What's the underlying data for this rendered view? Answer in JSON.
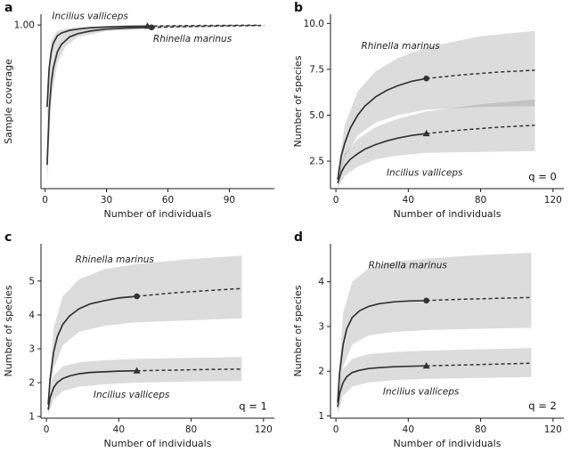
{
  "figure": {
    "background": "#ffffff",
    "line_color": "#333333",
    "band_color": "#8c8c8c",
    "axis_color": "#1a1a1a"
  },
  "chart_data": [
    {
      "id": "a",
      "letter": "a",
      "type": "line",
      "xlabel": "Number of individuals",
      "ylabel": "Sample coverage",
      "xlim": [
        -2,
        112
      ],
      "ylim": [
        0.24,
        1.05
      ],
      "xticks": [
        {
          "v": 0,
          "t": "0"
        },
        {
          "v": 30,
          "t": "30"
        },
        {
          "v": 60,
          "t": "60"
        },
        {
          "v": 90,
          "t": "90"
        }
      ],
      "yticks": [
        {
          "v": 1.0,
          "t": "1.00"
        }
      ],
      "q_label": null,
      "series": [
        {
          "name": "Incilius valliceps",
          "marker": "triangle",
          "solid": {
            "x": [
              1,
              2,
              3,
              4,
              6,
              8,
              12,
              16,
              22,
              30,
              40,
              50
            ],
            "y": [
              0.62,
              0.8,
              0.875,
              0.915,
              0.95,
              0.963,
              0.975,
              0.981,
              0.987,
              0.991,
              0.994,
              0.995
            ]
          },
          "dashed": {
            "x": [
              50,
              68,
              88,
              105
            ],
            "y": [
              0.995,
              0.997,
              0.9985,
              0.999
            ]
          },
          "band": {
            "x": [
              1,
              3,
              6,
              10,
              16,
              30,
              50,
              105
            ],
            "upper": [
              0.72,
              0.93,
              0.972,
              0.983,
              0.99,
              0.996,
              0.9985,
              1.0
            ],
            "lower": [
              0.52,
              0.82,
              0.928,
              0.955,
              0.972,
              0.986,
              0.9915,
              0.998
            ]
          },
          "label": {
            "text": "Incilius valliceps",
            "x": 22,
            "y": 1.028,
            "anchor": "middle"
          }
        },
        {
          "name": "Rhinella marinus",
          "marker": "circle",
          "solid": {
            "x": [
              1,
              2,
              3,
              4,
              6,
              8,
              12,
              16,
              22,
              30,
              40,
              52
            ],
            "y": [
              0.35,
              0.6,
              0.73,
              0.8,
              0.875,
              0.91,
              0.945,
              0.96,
              0.972,
              0.981,
              0.986,
              0.989
            ]
          },
          "dashed": {
            "x": [
              52,
              70,
              90,
              107
            ],
            "y": [
              0.989,
              0.993,
              0.996,
              0.998
            ]
          },
          "band": {
            "x": [
              1,
              3,
              6,
              10,
              16,
              30,
              52,
              107
            ],
            "upper": [
              0.45,
              0.81,
              0.925,
              0.955,
              0.974,
              0.989,
              0.996,
              1.0
            ],
            "lower": [
              0.26,
              0.65,
              0.825,
              0.9,
              0.944,
              0.972,
              0.982,
              0.996
            ]
          },
          "label": {
            "text": "Rhinella marinus",
            "x": 72,
            "y": 0.922,
            "anchor": "middle"
          }
        }
      ]
    },
    {
      "id": "b",
      "letter": "b",
      "type": "line",
      "xlabel": "Number of individuals",
      "ylabel": "Number of species",
      "xlim": [
        -3,
        126
      ],
      "ylim": [
        1.0,
        10.5
      ],
      "xticks": [
        {
          "v": 0,
          "t": "0"
        },
        {
          "v": 40,
          "t": "40"
        },
        {
          "v": 80,
          "t": "80"
        },
        {
          "v": 120,
          "t": "120"
        }
      ],
      "yticks": [
        {
          "v": 2.5,
          "t": "2.5"
        },
        {
          "v": 5.0,
          "t": "5.0"
        },
        {
          "v": 7.5,
          "t": "7.5"
        },
        {
          "v": 10.0,
          "t": "10.0"
        }
      ],
      "q_label": {
        "text": "q = 0",
        "x": 122,
        "y": 1.45
      },
      "series": [
        {
          "name": "Rhinella marinus",
          "marker": "circle",
          "solid": {
            "x": [
              1,
              3,
              5,
              8,
              12,
              16,
              22,
              28,
              34,
              42,
              50
            ],
            "y": [
              1.5,
              2.8,
              3.5,
              4.3,
              5.0,
              5.5,
              6.0,
              6.35,
              6.6,
              6.85,
              7.0
            ]
          },
          "dashed": {
            "x": [
              50,
              70,
              90,
              110
            ],
            "y": [
              7.0,
              7.2,
              7.35,
              7.45
            ]
          },
          "band": {
            "x": [
              1,
              5,
              12,
              22,
              34,
              50,
              80,
              110
            ],
            "upper": [
              1.9,
              4.5,
              6.3,
              7.4,
              8.1,
              8.7,
              9.3,
              9.6
            ],
            "lower": [
              1.2,
              2.7,
              3.9,
              4.6,
              5.0,
              5.3,
              5.45,
              5.5
            ]
          },
          "label": {
            "text": "Rhinella marinus",
            "x": 14,
            "y": 8.6,
            "anchor": "start"
          }
        },
        {
          "name": "Incilius valliceps",
          "marker": "triangle",
          "solid": {
            "x": [
              1,
              3,
              5,
              8,
              12,
              16,
              22,
              28,
              34,
              42,
              50
            ],
            "y": [
              1.3,
              1.9,
              2.25,
              2.6,
              2.9,
              3.15,
              3.4,
              3.6,
              3.75,
              3.9,
              4.0
            ]
          },
          "dashed": {
            "x": [
              50,
              70,
              90,
              110
            ],
            "y": [
              4.0,
              4.2,
              4.35,
              4.45
            ]
          },
          "band": {
            "x": [
              1,
              5,
              12,
              22,
              34,
              50,
              80,
              110
            ],
            "upper": [
              1.6,
              2.9,
              3.7,
              4.35,
              4.8,
              5.2,
              5.6,
              5.85
            ],
            "lower": [
              1.05,
              1.7,
              2.2,
              2.6,
              2.8,
              2.95,
              3.0,
              3.05
            ]
          },
          "label": {
            "text": "Incilius valliceps",
            "x": 28,
            "y": 1.7,
            "anchor": "start"
          }
        }
      ]
    },
    {
      "id": "c",
      "letter": "c",
      "type": "line",
      "xlabel": "Number of individuals",
      "ylabel": "Number of species",
      "xlim": [
        -3,
        126
      ],
      "ylim": [
        0.95,
        6.1
      ],
      "xticks": [
        {
          "v": 0,
          "t": "0"
        },
        {
          "v": 40,
          "t": "40"
        },
        {
          "v": 80,
          "t": "80"
        },
        {
          "v": 120,
          "t": "120"
        }
      ],
      "yticks": [
        {
          "v": 1,
          "t": "1"
        },
        {
          "v": 2,
          "t": "2"
        },
        {
          "v": 3,
          "t": "3"
        },
        {
          "v": 4,
          "t": "4"
        },
        {
          "v": 5,
          "t": "5"
        }
      ],
      "q_label": {
        "text": "q = 1",
        "x": 122,
        "y": 1.2
      },
      "series": [
        {
          "name": "Rhinella marinus",
          "marker": "circle",
          "solid": {
            "x": [
              1,
              2,
              4,
              6,
              9,
              13,
              18,
              24,
              32,
              40,
              50
            ],
            "y": [
              1.35,
              2.1,
              2.9,
              3.35,
              3.72,
              3.98,
              4.18,
              4.32,
              4.42,
              4.5,
              4.55
            ]
          },
          "dashed": {
            "x": [
              50,
              70,
              90,
              108
            ],
            "y": [
              4.55,
              4.65,
              4.72,
              4.78
            ]
          },
          "band": {
            "x": [
              1,
              4,
              9,
              18,
              32,
              50,
              80,
              108
            ],
            "upper": [
              1.6,
              3.6,
              4.55,
              5.05,
              5.35,
              5.5,
              5.65,
              5.75
            ],
            "lower": [
              1.15,
              2.4,
              3.1,
              3.5,
              3.68,
              3.78,
              3.84,
              3.9
            ]
          },
          "label": {
            "text": "Rhinella marinus",
            "x": 16,
            "y": 5.55,
            "anchor": "start"
          }
        },
        {
          "name": "Incilius valliceps",
          "marker": "triangle",
          "solid": {
            "x": [
              1,
              2,
              4,
              6,
              9,
              13,
              18,
              24,
              32,
              40,
              50
            ],
            "y": [
              1.2,
              1.55,
              1.85,
              2.0,
              2.12,
              2.2,
              2.26,
              2.3,
              2.32,
              2.34,
              2.35
            ]
          },
          "dashed": {
            "x": [
              50,
              70,
              90,
              108
            ],
            "y": [
              2.35,
              2.37,
              2.39,
              2.4
            ]
          },
          "band": {
            "x": [
              1,
              4,
              9,
              18,
              32,
              50,
              80,
              108
            ],
            "upper": [
              1.4,
              2.2,
              2.48,
              2.6,
              2.66,
              2.7,
              2.73,
              2.76
            ],
            "lower": [
              1.05,
              1.5,
              1.75,
              1.88,
              1.95,
              2.0,
              2.03,
              2.05
            ]
          },
          "label": {
            "text": "Incilius valliceps",
            "x": 26,
            "y": 1.55,
            "anchor": "start"
          }
        }
      ]
    },
    {
      "id": "d",
      "letter": "d",
      "type": "line",
      "xlabel": "Number of individuals",
      "ylabel": "Number of species",
      "xlim": [
        -3,
        126
      ],
      "ylim": [
        0.95,
        4.85
      ],
      "xticks": [
        {
          "v": 0,
          "t": "0"
        },
        {
          "v": 40,
          "t": "40"
        },
        {
          "v": 80,
          "t": "80"
        },
        {
          "v": 120,
          "t": "120"
        }
      ],
      "yticks": [
        {
          "v": 1,
          "t": "1"
        },
        {
          "v": 2,
          "t": "2"
        },
        {
          "v": 3,
          "t": "3"
        },
        {
          "v": 4,
          "t": "4"
        }
      ],
      "q_label": {
        "text": "q = 2",
        "x": 122,
        "y": 1.15
      },
      "series": [
        {
          "name": "Rhinella marinus",
          "marker": "circle",
          "solid": {
            "x": [
              1,
              2,
              4,
              6,
              9,
              13,
              18,
              24,
              32,
              40,
              50
            ],
            "y": [
              1.3,
              1.95,
              2.6,
              2.95,
              3.2,
              3.35,
              3.45,
              3.51,
              3.55,
              3.57,
              3.58
            ]
          },
          "dashed": {
            "x": [
              50,
              70,
              90,
              108
            ],
            "y": [
              3.58,
              3.61,
              3.63,
              3.65
            ]
          },
          "band": {
            "x": [
              1,
              4,
              9,
              18,
              32,
              50,
              80,
              108
            ],
            "upper": [
              1.55,
              3.3,
              4.0,
              4.3,
              4.45,
              4.52,
              4.6,
              4.65
            ],
            "lower": [
              1.1,
              2.1,
              2.6,
              2.8,
              2.88,
              2.92,
              2.95,
              2.97
            ]
          },
          "label": {
            "text": "Rhinella marinus",
            "x": 18,
            "y": 4.3,
            "anchor": "start"
          }
        },
        {
          "name": "Incilius valliceps",
          "marker": "triangle",
          "solid": {
            "x": [
              1,
              2,
              4,
              6,
              9,
              13,
              18,
              24,
              32,
              40,
              50
            ],
            "y": [
              1.2,
              1.5,
              1.75,
              1.88,
              1.97,
              2.02,
              2.06,
              2.08,
              2.1,
              2.11,
              2.12
            ]
          },
          "dashed": {
            "x": [
              50,
              70,
              90,
              108
            ],
            "y": [
              2.12,
              2.14,
              2.16,
              2.18
            ]
          },
          "band": {
            "x": [
              1,
              4,
              9,
              18,
              32,
              50,
              80,
              108
            ],
            "upper": [
              1.38,
              2.05,
              2.28,
              2.38,
              2.43,
              2.46,
              2.49,
              2.52
            ],
            "lower": [
              1.05,
              1.45,
              1.65,
              1.75,
              1.8,
              1.83,
              1.85,
              1.87
            ]
          },
          "label": {
            "text": "Incilius valliceps",
            "x": 26,
            "y": 1.48,
            "anchor": "start"
          }
        }
      ]
    }
  ]
}
